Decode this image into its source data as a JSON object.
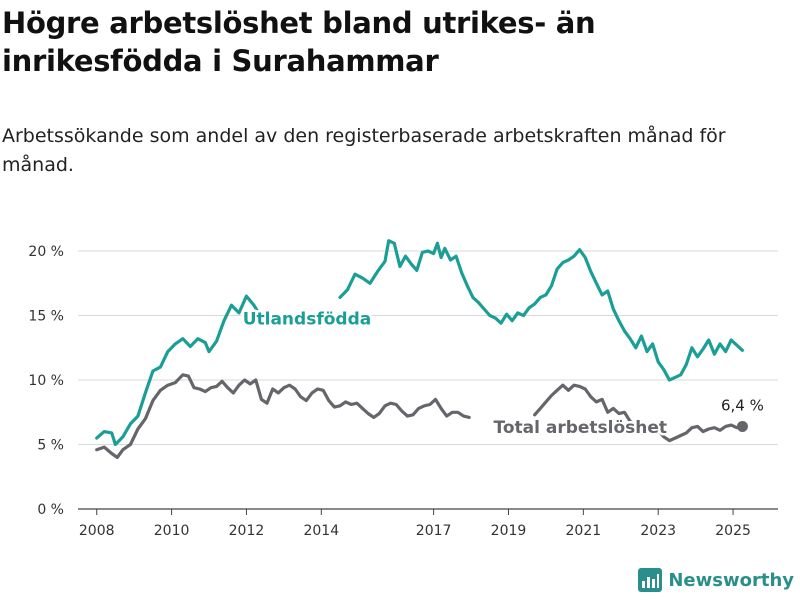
{
  "header": {
    "title": "Högre arbetslöshet bland utrikes- än inrikesfödda i Surahammar",
    "subtitle": "Arbetssökande som andel av den registerbaserade arbetskraften månad för månad."
  },
  "brand": {
    "name": "Newsworthy",
    "icon": "newsworthy-logo-icon",
    "color": "#2a8f8a"
  },
  "chart_data": {
    "type": "line",
    "x_unit": "year (decimal)",
    "xlim": [
      2007.5,
      2026.2
    ],
    "ylim": [
      0,
      20
    ],
    "x_ticks": [
      {
        "value": 2008,
        "label": "2008"
      },
      {
        "value": 2010,
        "label": "2010"
      },
      {
        "value": 2012,
        "label": "2012"
      },
      {
        "value": 2014,
        "label": "2014"
      },
      {
        "value": 2017,
        "label": "2017"
      },
      {
        "value": 2019,
        "label": "2019"
      },
      {
        "value": 2021,
        "label": "2021"
      },
      {
        "value": 2023,
        "label": "2023"
      },
      {
        "value": 2025,
        "label": "2025"
      }
    ],
    "y_ticks": [
      {
        "value": 0,
        "label": "0 %"
      },
      {
        "value": 5,
        "label": "5 %"
      },
      {
        "value": 10,
        "label": "10 %"
      },
      {
        "value": 15,
        "label": "15 %"
      },
      {
        "value": 20,
        "label": "20 %"
      }
    ],
    "grid": true,
    "series": [
      {
        "name": "Utlandsfödda",
        "color": "#1a9e96",
        "label_at": [
          2011.9,
          14.3
        ],
        "segments": [
          [
            [
              2008.0,
              5.5
            ],
            [
              2008.2,
              6.0
            ],
            [
              2008.4,
              5.9
            ],
            [
              2008.5,
              5.0
            ],
            [
              2008.7,
              5.6
            ],
            [
              2008.9,
              6.6
            ],
            [
              2009.1,
              7.2
            ],
            [
              2009.3,
              9.0
            ],
            [
              2009.5,
              10.7
            ],
            [
              2009.7,
              11.0
            ],
            [
              2009.9,
              12.2
            ],
            [
              2010.1,
              12.8
            ],
            [
              2010.3,
              13.2
            ],
            [
              2010.5,
              12.6
            ],
            [
              2010.7,
              13.2
            ],
            [
              2010.9,
              12.9
            ],
            [
              2011.0,
              12.2
            ],
            [
              2011.2,
              13.0
            ],
            [
              2011.4,
              14.6
            ],
            [
              2011.6,
              15.8
            ],
            [
              2011.8,
              15.2
            ],
            [
              2012.0,
              16.5
            ],
            [
              2012.2,
              15.8
            ],
            [
              2012.3,
              15.3
            ]
          ],
          [
            [
              2014.5,
              16.4
            ],
            [
              2014.7,
              17.0
            ],
            [
              2014.9,
              18.2
            ],
            [
              2015.1,
              17.9
            ],
            [
              2015.3,
              17.5
            ],
            [
              2015.5,
              18.4
            ],
            [
              2015.7,
              19.2
            ],
            [
              2015.8,
              20.8
            ],
            [
              2015.95,
              20.6
            ],
            [
              2016.1,
              18.8
            ],
            [
              2016.25,
              19.6
            ],
            [
              2016.4,
              19.0
            ],
            [
              2016.55,
              18.5
            ],
            [
              2016.7,
              19.9
            ],
            [
              2016.85,
              20.0
            ],
            [
              2017.0,
              19.8
            ],
            [
              2017.1,
              20.6
            ],
            [
              2017.2,
              19.5
            ],
            [
              2017.3,
              20.2
            ],
            [
              2017.45,
              19.3
            ],
            [
              2017.6,
              19.6
            ],
            [
              2017.75,
              18.3
            ],
            [
              2017.9,
              17.3
            ],
            [
              2018.05,
              16.4
            ],
            [
              2018.2,
              16.0
            ],
            [
              2018.35,
              15.5
            ],
            [
              2018.5,
              15.0
            ],
            [
              2018.65,
              14.8
            ],
            [
              2018.8,
              14.4
            ],
            [
              2018.95,
              15.1
            ],
            [
              2019.1,
              14.6
            ],
            [
              2019.25,
              15.2
            ],
            [
              2019.4,
              15.0
            ],
            [
              2019.55,
              15.6
            ],
            [
              2019.7,
              15.9
            ],
            [
              2019.85,
              16.4
            ],
            [
              2020.0,
              16.6
            ],
            [
              2020.15,
              17.3
            ],
            [
              2020.3,
              18.6
            ],
            [
              2020.45,
              19.1
            ],
            [
              2020.6,
              19.3
            ],
            [
              2020.75,
              19.6
            ],
            [
              2020.9,
              20.1
            ],
            [
              2021.05,
              19.5
            ],
            [
              2021.2,
              18.4
            ],
            [
              2021.35,
              17.5
            ],
            [
              2021.5,
              16.6
            ],
            [
              2021.65,
              16.9
            ],
            [
              2021.8,
              15.5
            ],
            [
              2021.95,
              14.6
            ],
            [
              2022.1,
              13.8
            ],
            [
              2022.25,
              13.2
            ],
            [
              2022.4,
              12.5
            ],
            [
              2022.55,
              13.4
            ],
            [
              2022.7,
              12.2
            ],
            [
              2022.85,
              12.8
            ],
            [
              2023.0,
              11.4
            ],
            [
              2023.15,
              10.8
            ],
            [
              2023.3,
              10.0
            ],
            [
              2023.45,
              10.2
            ],
            [
              2023.6,
              10.4
            ],
            [
              2023.75,
              11.2
            ],
            [
              2023.9,
              12.5
            ],
            [
              2024.05,
              11.8
            ],
            [
              2024.2,
              12.4
            ],
            [
              2024.35,
              13.1
            ],
            [
              2024.5,
              12.0
            ],
            [
              2024.65,
              12.8
            ],
            [
              2024.8,
              12.2
            ],
            [
              2024.95,
              13.1
            ],
            [
              2025.1,
              12.7
            ],
            [
              2025.25,
              12.3
            ]
          ]
        ]
      },
      {
        "name": "Total arbetslöshet",
        "color": "#66656a",
        "label_at": [
          2018.6,
          5.9
        ],
        "segments": [
          [
            [
              2008.0,
              4.6
            ],
            [
              2008.2,
              4.8
            ],
            [
              2008.4,
              4.3
            ],
            [
              2008.55,
              4.0
            ],
            [
              2008.7,
              4.6
            ],
            [
              2008.9,
              5.0
            ],
            [
              2009.1,
              6.2
            ],
            [
              2009.3,
              7.0
            ],
            [
              2009.5,
              8.4
            ],
            [
              2009.7,
              9.2
            ],
            [
              2009.9,
              9.6
            ],
            [
              2010.1,
              9.8
            ],
            [
              2010.3,
              10.4
            ],
            [
              2010.45,
              10.3
            ],
            [
              2010.6,
              9.4
            ],
            [
              2010.75,
              9.3
            ],
            [
              2010.9,
              9.1
            ],
            [
              2011.05,
              9.4
            ],
            [
              2011.2,
              9.5
            ],
            [
              2011.35,
              9.9
            ],
            [
              2011.5,
              9.4
            ],
            [
              2011.65,
              9.0
            ],
            [
              2011.8,
              9.6
            ],
            [
              2011.95,
              10.0
            ],
            [
              2012.1,
              9.7
            ],
            [
              2012.25,
              10.0
            ],
            [
              2012.4,
              8.5
            ],
            [
              2012.55,
              8.2
            ],
            [
              2012.7,
              9.3
            ],
            [
              2012.85,
              9.0
            ],
            [
              2013.0,
              9.4
            ],
            [
              2013.15,
              9.6
            ],
            [
              2013.3,
              9.3
            ],
            [
              2013.45,
              8.7
            ],
            [
              2013.6,
              8.4
            ],
            [
              2013.75,
              9.0
            ],
            [
              2013.9,
              9.3
            ],
            [
              2014.05,
              9.2
            ],
            [
              2014.2,
              8.4
            ],
            [
              2014.35,
              7.9
            ],
            [
              2014.5,
              8.0
            ],
            [
              2014.65,
              8.3
            ],
            [
              2014.8,
              8.1
            ],
            [
              2014.95,
              8.2
            ],
            [
              2015.1,
              7.8
            ],
            [
              2015.25,
              7.4
            ],
            [
              2015.4,
              7.1
            ],
            [
              2015.55,
              7.4
            ],
            [
              2015.7,
              8.0
            ],
            [
              2015.85,
              8.2
            ],
            [
              2016.0,
              8.1
            ],
            [
              2016.15,
              7.6
            ],
            [
              2016.3,
              7.2
            ],
            [
              2016.45,
              7.3
            ],
            [
              2016.6,
              7.8
            ],
            [
              2016.75,
              8.0
            ],
            [
              2016.9,
              8.1
            ],
            [
              2017.05,
              8.5
            ],
            [
              2017.2,
              7.8
            ],
            [
              2017.35,
              7.2
            ],
            [
              2017.5,
              7.5
            ],
            [
              2017.65,
              7.5
            ],
            [
              2017.8,
              7.2
            ],
            [
              2017.95,
              7.1
            ]
          ],
          [
            [
              2019.7,
              7.3
            ],
            [
              2019.85,
              7.8
            ],
            [
              2020.0,
              8.3
            ],
            [
              2020.15,
              8.8
            ],
            [
              2020.3,
              9.2
            ],
            [
              2020.45,
              9.6
            ],
            [
              2020.6,
              9.2
            ],
            [
              2020.75,
              9.6
            ],
            [
              2020.9,
              9.5
            ],
            [
              2021.05,
              9.3
            ],
            [
              2021.2,
              8.7
            ],
            [
              2021.35,
              8.3
            ],
            [
              2021.5,
              8.5
            ],
            [
              2021.65,
              7.5
            ],
            [
              2021.8,
              7.8
            ],
            [
              2021.95,
              7.4
            ],
            [
              2022.1,
              7.5
            ],
            [
              2022.25,
              6.8
            ],
            [
              2022.4,
              6.5
            ],
            [
              2022.55,
              6.4
            ],
            [
              2022.7,
              6.3
            ],
            [
              2022.85,
              6.2
            ],
            [
              2023.0,
              6.1
            ],
            [
              2023.15,
              5.6
            ],
            [
              2023.3,
              5.3
            ],
            [
              2023.45,
              5.5
            ],
            [
              2023.6,
              5.7
            ],
            [
              2023.75,
              5.9
            ],
            [
              2023.9,
              6.3
            ],
            [
              2024.05,
              6.4
            ],
            [
              2024.2,
              6.0
            ],
            [
              2024.35,
              6.2
            ],
            [
              2024.5,
              6.3
            ],
            [
              2024.65,
              6.1
            ],
            [
              2024.8,
              6.4
            ],
            [
              2024.95,
              6.5
            ],
            [
              2025.1,
              6.3
            ],
            [
              2025.25,
              6.4
            ]
          ]
        ]
      }
    ],
    "end_point": {
      "series": "Total arbetslöshet",
      "x": 2025.25,
      "y": 6.4,
      "label": "6,4 %"
    }
  }
}
